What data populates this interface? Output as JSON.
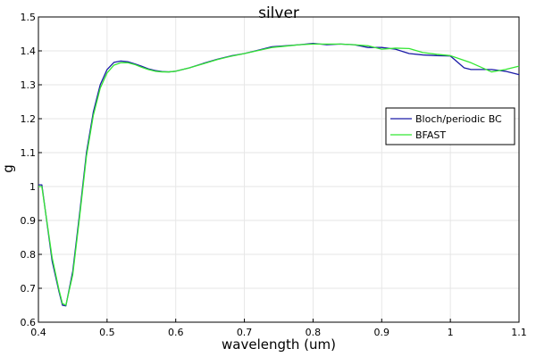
{
  "chart_data": {
    "type": "line",
    "title": "silver",
    "xlabel": "wavelength (um)",
    "ylabel": "g",
    "xlim": [
      0.4,
      1.1
    ],
    "ylim": [
      0.6,
      1.5
    ],
    "grid": true,
    "legend_position": "right",
    "x_ticks": [
      0.4,
      0.5,
      0.6,
      0.7,
      0.8,
      0.9,
      1,
      1.1
    ],
    "y_ticks": [
      0.6,
      0.7,
      0.8,
      0.9,
      1,
      1.1,
      1.2,
      1.3,
      1.4,
      1.5
    ],
    "series": [
      {
        "name": "Bloch/periodic BC",
        "color": "#1a1aa6",
        "x": [
          0.4,
          0.405,
          0.41,
          0.42,
          0.43,
          0.435,
          0.44,
          0.45,
          0.46,
          0.47,
          0.48,
          0.49,
          0.5,
          0.51,
          0.52,
          0.53,
          0.54,
          0.55,
          0.56,
          0.57,
          0.58,
          0.59,
          0.6,
          0.62,
          0.64,
          0.66,
          0.68,
          0.7,
          0.72,
          0.74,
          0.76,
          0.78,
          0.8,
          0.82,
          0.84,
          0.86,
          0.88,
          0.9,
          0.92,
          0.94,
          0.96,
          0.98,
          1.0,
          1.02,
          1.03,
          1.06,
          1.08,
          1.1
        ],
        "y": [
          1.005,
          1.005,
          0.93,
          0.78,
          0.69,
          0.65,
          0.648,
          0.75,
          0.92,
          1.1,
          1.22,
          1.3,
          1.345,
          1.366,
          1.37,
          1.368,
          1.362,
          1.355,
          1.347,
          1.342,
          1.339,
          1.338,
          1.34,
          1.35,
          1.363,
          1.375,
          1.385,
          1.392,
          1.402,
          1.412,
          1.415,
          1.418,
          1.422,
          1.418,
          1.42,
          1.418,
          1.41,
          1.41,
          1.405,
          1.392,
          1.388,
          1.386,
          1.385,
          1.35,
          1.345,
          1.345,
          1.34,
          1.33
        ]
      },
      {
        "name": "BFAST",
        "color": "#33e633",
        "x": [
          0.4,
          0.405,
          0.41,
          0.42,
          0.43,
          0.435,
          0.44,
          0.45,
          0.46,
          0.47,
          0.48,
          0.49,
          0.5,
          0.51,
          0.52,
          0.53,
          0.54,
          0.55,
          0.56,
          0.57,
          0.58,
          0.59,
          0.6,
          0.62,
          0.64,
          0.66,
          0.68,
          0.7,
          0.72,
          0.74,
          0.76,
          0.78,
          0.8,
          0.82,
          0.84,
          0.86,
          0.88,
          0.9,
          0.92,
          0.94,
          0.96,
          0.98,
          1.0,
          1.02,
          1.03,
          1.06,
          1.08,
          1.1
        ],
        "y": [
          1.0,
          1.0,
          0.93,
          0.79,
          0.695,
          0.655,
          0.65,
          0.74,
          0.91,
          1.09,
          1.21,
          1.29,
          1.335,
          1.358,
          1.365,
          1.365,
          1.36,
          1.352,
          1.345,
          1.34,
          1.338,
          1.338,
          1.34,
          1.35,
          1.362,
          1.374,
          1.384,
          1.392,
          1.401,
          1.41,
          1.414,
          1.418,
          1.42,
          1.42,
          1.42,
          1.418,
          1.415,
          1.405,
          1.408,
          1.407,
          1.395,
          1.39,
          1.386,
          1.372,
          1.365,
          1.338,
          1.345,
          1.355
        ]
      }
    ]
  }
}
